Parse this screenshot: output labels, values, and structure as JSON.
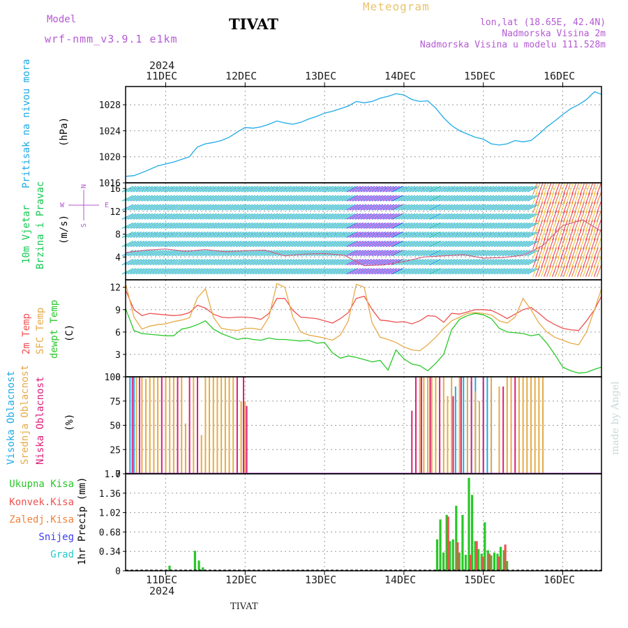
{
  "header": {
    "model_label": "Model",
    "model_name": "wrf-nmm_v3.9.1 e1km",
    "title": "TIVAT",
    "meteogram": "Meteogram",
    "lonlat": "lon,lat (18.65E, 42.4N)",
    "altitude": "Nadmorska Visina 2m",
    "model_altitude": "Nadmorska Visina u modelu 111.528m",
    "colors": {
      "model": "#b45ad2",
      "meteogram": "#e8c46a",
      "title": "#000000",
      "info": "#b45ad2"
    }
  },
  "top_axis": {
    "year": "2024",
    "days": [
      "11DEC",
      "12DEC",
      "13DEC",
      "14DEC",
      "15DEC",
      "16DEC"
    ]
  },
  "bottom_axis": {
    "year": "2024",
    "days": [
      "11DEC",
      "12DEC",
      "13DEC",
      "14DEC",
      "15DEC",
      "16DEC"
    ],
    "station": "TIVAT"
  },
  "credit": "made by Angel",
  "panels": {
    "pressure": {
      "label": "Pritisak na nivou mora",
      "unit": "(hPa)",
      "ticks": [
        "1016",
        "1020",
        "1024",
        "1028"
      ],
      "color": "#1eaae6"
    },
    "wind": {
      "label1": "10m Vjetar",
      "label2": "Brzina i Pravac",
      "unit": "(m/s)",
      "ticks": [
        "4",
        "8",
        "12",
        "16"
      ],
      "compass": {
        "n": "N",
        "s": "S",
        "e": "E",
        "w": "W"
      },
      "label_color": "#14c850",
      "compass_color": "#b45ad2"
    },
    "temp": {
      "label1": "2m Temp",
      "label2": "SFC Temp",
      "label3": "dewpt Temp",
      "unit": "(C)",
      "ticks": [
        "0",
        "3",
        "6",
        "9",
        "12"
      ],
      "colors": {
        "t2": "#f05050",
        "sfc": "#e6aa46",
        "dew": "#28c828"
      }
    },
    "cloud": {
      "label1": "Visoka Oblacnost",
      "label2": "Srednja Oblacnost",
      "label3": "Niska Oblacnost",
      "unit": "(%)",
      "ticks": [
        "0",
        "25",
        "50",
        "75",
        "100"
      ],
      "colors": {
        "high": "#1eaae6",
        "mid": "#e6aa46",
        "low": "#dc1e78"
      }
    },
    "precip": {
      "label": "1hr Precip (mm)",
      "ticks": [
        "0",
        "0.34",
        "0.68",
        "1.02",
        "1.36",
        "1.7"
      ],
      "legend": [
        {
          "name": "Ukupna Kisa",
          "color": "#28c828"
        },
        {
          "name": "Konvek.Kisa",
          "color": "#f05050"
        },
        {
          "name": "Zaledj.Kisa",
          "color": "#f0823c"
        },
        {
          "name": "Snijeg",
          "color": "#3c3cf0"
        },
        {
          "name": "Grad",
          "color": "#28c8c8"
        }
      ]
    }
  },
  "chart_data": [
    {
      "type": "line",
      "title": "Pritisak na nivou mora",
      "ylabel": "hPa",
      "ylim": [
        1016,
        1030.8
      ],
      "x": [
        0.5,
        0.6,
        0.75,
        0.9,
        1.0,
        1.1,
        1.2,
        1.3,
        1.35,
        1.4,
        1.5,
        1.6,
        1.7,
        1.8,
        1.9,
        2.0,
        2.1,
        2.2,
        2.3,
        2.4,
        2.5,
        2.6,
        2.7,
        2.8,
        2.9,
        3.0,
        3.1,
        3.2,
        3.3,
        3.4,
        3.5,
        3.6,
        3.7,
        3.8,
        3.9,
        4.0,
        4.1,
        4.2,
        4.3,
        4.4,
        4.5,
        4.6,
        4.7,
        4.8,
        4.9,
        5.0,
        5.1,
        5.2,
        5.3,
        5.4,
        5.5,
        5.6,
        5.7,
        5.8,
        5.9,
        6.0,
        6.1,
        6.2,
        6.3,
        6.4,
        6.5
      ],
      "series": [
        {
          "values": [
            1017.0,
            1017.1,
            1017.8,
            1018.6,
            1018.9,
            1019.2,
            1019.6,
            1020.0,
            1020.8,
            1021.5,
            1022.0,
            1022.2,
            1022.5,
            1023.0,
            1023.8,
            1024.5,
            1024.4,
            1024.6,
            1025.0,
            1025.5,
            1025.2,
            1025.0,
            1025.3,
            1025.8,
            1026.2,
            1026.7,
            1027.0,
            1027.4,
            1027.8,
            1028.5,
            1028.3,
            1028.5,
            1029.0,
            1029.3,
            1029.7,
            1029.5,
            1028.8,
            1028.5,
            1028.6,
            1027.5,
            1026.0,
            1024.8,
            1024.0,
            1023.5,
            1023.0,
            1022.7,
            1022.0,
            1021.8,
            1022.0,
            1022.5,
            1022.3,
            1022.5,
            1023.5,
            1024.6,
            1025.5,
            1026.5,
            1027.4,
            1028.0,
            1028.8,
            1030.0,
            1029.6
          ]
        }
      ]
    },
    {
      "type": "line",
      "title": "10m Vjetar Brzina i Pravac",
      "ylabel": "m/s",
      "ylim": [
        0,
        17
      ],
      "x": [
        0.5,
        0.75,
        1.0,
        1.25,
        1.5,
        1.75,
        2.0,
        2.25,
        2.5,
        2.75,
        3.0,
        3.25,
        3.5,
        3.75,
        4.0,
        4.25,
        4.5,
        4.75,
        5.0,
        5.25,
        5.5,
        5.75,
        6.0,
        6.25,
        6.5
      ],
      "series": [
        {
          "values": [
            4.8,
            5.2,
            5.4,
            5.0,
            5.3,
            4.9,
            5.1,
            5.2,
            4.2,
            4.5,
            4.6,
            4.3,
            2.5,
            2.6,
            3.2,
            4.0,
            4.2,
            4.4,
            3.8,
            3.9,
            4.3,
            6.0,
            9.5,
            10.5,
            8.5
          ]
        }
      ]
    },
    {
      "type": "line",
      "title": "2m Temp / SFC Temp / dewpt Temp",
      "ylabel": "C",
      "ylim": [
        0,
        13
      ],
      "x": [
        0.5,
        0.6,
        0.7,
        0.8,
        0.9,
        1.0,
        1.1,
        1.2,
        1.3,
        1.4,
        1.5,
        1.6,
        1.7,
        1.8,
        1.9,
        2.0,
        2.1,
        2.2,
        2.3,
        2.4,
        2.5,
        2.6,
        2.7,
        2.8,
        2.9,
        3.0,
        3.1,
        3.2,
        3.3,
        3.4,
        3.5,
        3.6,
        3.7,
        3.8,
        3.9,
        4.0,
        4.1,
        4.2,
        4.3,
        4.4,
        4.5,
        4.6,
        4.7,
        4.8,
        4.9,
        5.0,
        5.1,
        5.2,
        5.3,
        5.4,
        5.5,
        5.6,
        5.7,
        5.8,
        5.9,
        6.0,
        6.1,
        6.2,
        6.3,
        6.4,
        6.5
      ],
      "series": [
        {
          "name": "2m Temp",
          "values": [
            11.5,
            9.0,
            8.2,
            8.5,
            8.4,
            8.3,
            8.2,
            8.3,
            8.6,
            9.6,
            9.2,
            8.4,
            8.0,
            7.9,
            8.0,
            8.0,
            7.9,
            7.7,
            8.5,
            10.5,
            10.5,
            8.9,
            8.0,
            7.9,
            7.8,
            7.5,
            7.2,
            7.8,
            8.6,
            10.5,
            10.8,
            9.0,
            7.6,
            7.5,
            7.3,
            7.4,
            7.1,
            7.5,
            8.2,
            8.1,
            7.3,
            8.5,
            8.4,
            8.7,
            9.0,
            9.0,
            8.9,
            8.4,
            7.8,
            8.4,
            9.0,
            9.3,
            8.5,
            7.6,
            7.0,
            6.5,
            6.3,
            6.2,
            7.5,
            9.0,
            10.8
          ]
        },
        {
          "name": "SFC Temp",
          "values": [
            12.3,
            8.0,
            6.4,
            6.8,
            7.0,
            7.1,
            7.4,
            7.6,
            7.9,
            10.6,
            11.8,
            8.0,
            6.5,
            6.3,
            6.2,
            6.5,
            6.5,
            6.3,
            8.0,
            12.5,
            12.0,
            8.0,
            6.0,
            5.6,
            5.4,
            5.2,
            4.9,
            5.6,
            7.5,
            12.4,
            12.0,
            7.2,
            5.3,
            5.0,
            4.6,
            4.0,
            3.6,
            3.5,
            4.3,
            5.3,
            6.5,
            7.5,
            8.0,
            8.5,
            8.6,
            8.5,
            8.3,
            7.5,
            7.2,
            8.0,
            10.5,
            9.0,
            7.2,
            6.0,
            5.3,
            4.9,
            4.5,
            4.3,
            6.0,
            9.0,
            11.8
          ]
        },
        {
          "name": "dewpt Temp",
          "values": [
            9.0,
            6.2,
            5.8,
            5.7,
            5.6,
            5.5,
            5.5,
            6.4,
            6.6,
            7.0,
            7.5,
            6.4,
            5.8,
            5.4,
            5.0,
            5.2,
            5.0,
            4.9,
            5.2,
            5.0,
            5.0,
            4.9,
            4.8,
            4.9,
            4.5,
            4.6,
            3.2,
            2.5,
            2.8,
            2.6,
            2.3,
            2.0,
            2.2,
            0.9,
            3.6,
            2.4,
            1.7,
            1.5,
            0.8,
            1.8,
            3.0,
            6.3,
            7.7,
            8.2,
            8.5,
            8.3,
            7.8,
            6.5,
            6.0,
            5.9,
            5.8,
            5.5,
            5.7,
            4.5,
            3.0,
            1.3,
            0.8,
            0.5,
            0.6,
            1.0,
            1.3
          ]
        }
      ]
    },
    {
      "type": "bar",
      "title": "Visoka / Srednja / Niska Oblacnost",
      "ylabel": "%",
      "ylim": [
        0,
        100
      ],
      "series": [
        {
          "name": "Visoka Oblacnost",
          "x": [
            0.55,
            0.6,
            4.65,
            4.75,
            4.8,
            4.85,
            4.9,
            5.0,
            5.05,
            5.1
          ],
          "values": [
            100,
            100,
            90,
            100,
            100,
            95,
            100,
            100,
            100,
            85
          ]
        },
        {
          "name": "Srednja Oblacnost",
          "x": [
            0.63,
            0.7,
            0.75,
            0.8,
            0.85,
            0.9,
            1.0,
            1.05,
            1.1,
            1.2,
            1.25,
            1.35,
            1.45,
            1.5,
            1.55,
            1.6,
            1.65,
            1.7,
            1.75,
            1.8,
            1.85,
            1.95,
            2.0,
            4.2,
            4.25,
            4.3,
            4.35,
            4.4,
            4.5,
            4.55,
            4.6,
            4.7,
            4.8,
            4.9,
            4.95,
            5.1,
            5.2,
            5.3,
            5.35,
            5.45,
            5.5,
            5.55,
            5.6,
            5.65,
            5.7,
            5.75
          ],
          "values": [
            100,
            100,
            98,
            100,
            100,
            100,
            100,
            100,
            100,
            100,
            52,
            100,
            40,
            100,
            100,
            100,
            100,
            100,
            100,
            100,
            100,
            75,
            75,
            100,
            100,
            100,
            100,
            100,
            100,
            80,
            100,
            100,
            100,
            85,
            75,
            100,
            90,
            100,
            100,
            100,
            100,
            100,
            100,
            100,
            100,
            100
          ]
        },
        {
          "name": "Niska Oblacnost",
          "x": [
            0.58,
            0.67,
            0.95,
            1.15,
            1.3,
            1.4,
            1.9,
            1.98,
            2.02,
            4.1,
            4.15,
            4.22,
            4.33,
            4.45,
            4.62,
            4.72,
            4.85,
            5.0,
            5.25,
            5.4
          ],
          "values": [
            100,
            100,
            100,
            100,
            100,
            100,
            100,
            100,
            70,
            65,
            100,
            100,
            100,
            100,
            80,
            100,
            100,
            100,
            90,
            100
          ]
        }
      ]
    },
    {
      "type": "bar",
      "title": "1hr Precip",
      "ylabel": "mm",
      "ylim": [
        0,
        1.7
      ],
      "series": [
        {
          "name": "Ukupna Kisa",
          "x": [
            1.05,
            1.37,
            1.42,
            1.47,
            4.42,
            4.46,
            4.5,
            4.54,
            4.58,
            4.62,
            4.66,
            4.7,
            4.74,
            4.78,
            4.82,
            4.86,
            4.9,
            4.94,
            4.98,
            5.02,
            5.06,
            5.1,
            5.14,
            5.18,
            5.22,
            5.26,
            5.3
          ],
          "values": [
            0.09,
            0.35,
            0.18,
            0.06,
            0.55,
            0.9,
            0.32,
            0.98,
            0.52,
            0.55,
            1.14,
            0.32,
            0.98,
            0.28,
            1.63,
            1.33,
            0.52,
            0.38,
            0.3,
            0.85,
            0.36,
            0.27,
            0.32,
            0.3,
            0.42,
            0.36,
            0.17
          ]
        },
        {
          "name": "Konvek.Kisa",
          "x": [
            4.54,
            4.66,
            4.82,
            4.9,
            4.98,
            5.06,
            5.18,
            5.26
          ],
          "values": [
            0.95,
            0.5,
            0.28,
            0.52,
            0.25,
            0.3,
            0.25,
            0.46
          ]
        }
      ]
    }
  ]
}
